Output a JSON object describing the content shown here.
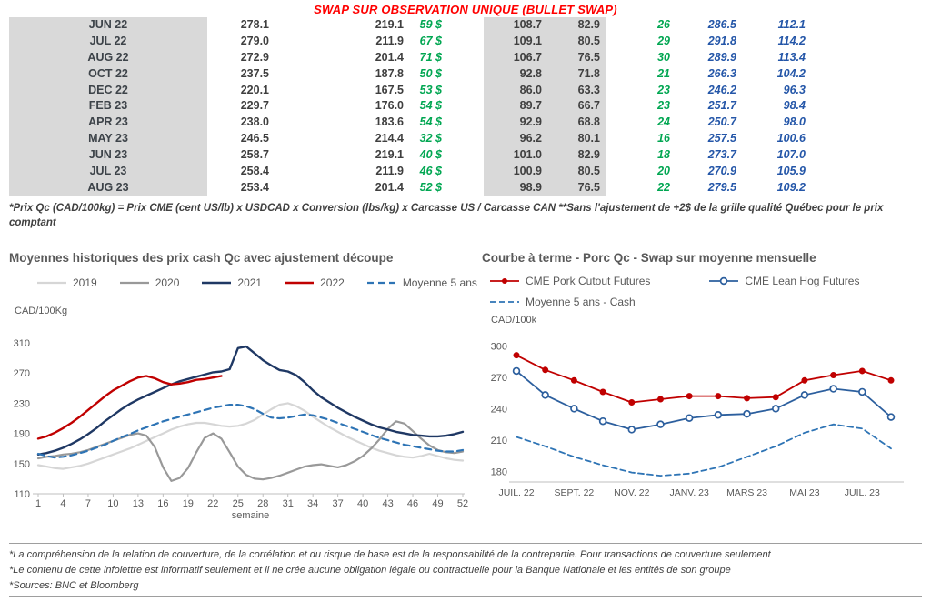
{
  "page": {
    "title": "SWAP SUR OBSERVATION UNIQUE (BULLET SWAP)"
  },
  "colors": {
    "title_red": "#FF0000",
    "positive_green": "#00A651",
    "forward_blue": "#2456A8",
    "table_shading": "#D9D9D9",
    "chart_title_gray": "#595959"
  },
  "swap_table": {
    "rows": [
      {
        "month": "JUN 22",
        "values": [
          "278.1",
          "219.1",
          "59 $",
          "108.7",
          "82.9",
          "26",
          "286.5",
          "112.1"
        ]
      },
      {
        "month": "JUL 22",
        "values": [
          "279.0",
          "211.9",
          "67 $",
          "109.1",
          "80.5",
          "29",
          "291.8",
          "114.2"
        ]
      },
      {
        "month": "AUG 22",
        "values": [
          "272.9",
          "201.4",
          "71 $",
          "106.7",
          "76.5",
          "30",
          "289.9",
          "113.4"
        ]
      },
      {
        "month": "OCT 22",
        "values": [
          "237.5",
          "187.8",
          "50 $",
          "92.8",
          "71.8",
          "21",
          "266.3",
          "104.2"
        ]
      },
      {
        "month": "DEC 22",
        "values": [
          "220.1",
          "167.5",
          "53 $",
          "86.0",
          "63.3",
          "23",
          "246.2",
          "96.3"
        ]
      },
      {
        "month": "FEB 23",
        "values": [
          "229.7",
          "176.0",
          "54 $",
          "89.7",
          "66.7",
          "23",
          "251.7",
          "98.4"
        ]
      },
      {
        "month": "APR 23",
        "values": [
          "238.0",
          "183.6",
          "54 $",
          "92.9",
          "68.8",
          "24",
          "250.7",
          "98.0"
        ]
      },
      {
        "month": "MAY 23",
        "values": [
          "246.5",
          "214.4",
          "32 $",
          "96.2",
          "80.1",
          "16",
          "257.5",
          "100.6"
        ]
      },
      {
        "month": "JUN 23",
        "values": [
          "258.7",
          "219.1",
          "40 $",
          "101.0",
          "82.9",
          "18",
          "273.7",
          "107.0"
        ]
      },
      {
        "month": "JUL 23",
        "values": [
          "258.4",
          "211.9",
          "46 $",
          "100.9",
          "80.5",
          "20",
          "270.9",
          "105.9"
        ]
      },
      {
        "month": "AUG 23",
        "values": [
          "253.4",
          "201.4",
          "52 $",
          "98.9",
          "76.5",
          "22",
          "279.5",
          "109.2"
        ]
      }
    ]
  },
  "table_footnote": "*Prix Qc (CAD/100kg) = Prix CME (cent US/lb) x USDCAD x Conversion (lbs/kg) x Carcasse US / Carcasse CAN **Sans l'ajustement de +2$ de la grille qualité Québec pour le prix comptant",
  "chart_data": [
    {
      "type": "line",
      "title": "Moyennes historiques des prix cash Qc avec ajustement découpe",
      "ylabel": "CAD/100Kg",
      "xlabel": "semaine",
      "ylim": [
        110,
        310
      ],
      "yticks": [
        110,
        150,
        190,
        230,
        270,
        310
      ],
      "x_range": [
        1,
        52
      ],
      "xticks": [
        1,
        4,
        7,
        10,
        13,
        16,
        19,
        22,
        25,
        28,
        31,
        34,
        37,
        40,
        43,
        46,
        49,
        52
      ],
      "grid": false,
      "legend_position": "top",
      "series": [
        {
          "name": "2019",
          "color": "#D6D6D6",
          "width": 2.2,
          "dash": null,
          "values": [
            148,
            146,
            144,
            143,
            145,
            147,
            150,
            154,
            158,
            162,
            166,
            170,
            175,
            180,
            185,
            190,
            195,
            199,
            202,
            204,
            204,
            202,
            200,
            199,
            200,
            203,
            208,
            215,
            222,
            228,
            230,
            226,
            220,
            212,
            205,
            198,
            192,
            186,
            181,
            176,
            171,
            167,
            164,
            161,
            159,
            158,
            160,
            163,
            160,
            157,
            155,
            154
          ]
        },
        {
          "name": "2020",
          "color": "#999999",
          "width": 2.2,
          "dash": null,
          "values": [
            157,
            159,
            160,
            162,
            163,
            165,
            168,
            172,
            176,
            180,
            184,
            188,
            190,
            187,
            172,
            145,
            127,
            131,
            144,
            165,
            184,
            190,
            183,
            165,
            146,
            135,
            130,
            129,
            131,
            134,
            138,
            142,
            146,
            148,
            149,
            147,
            145,
            148,
            153,
            160,
            170,
            182,
            196,
            206,
            203,
            193,
            183,
            174,
            168,
            165,
            164,
            166
          ]
        },
        {
          "name": "2021",
          "color": "#1F3864",
          "width": 2.4,
          "dash": null,
          "values": [
            162,
            164,
            167,
            171,
            176,
            182,
            189,
            197,
            206,
            214,
            222,
            229,
            235,
            240,
            245,
            250,
            255,
            259,
            262,
            265,
            268,
            271,
            272,
            275,
            303,
            305,
            296,
            287,
            280,
            274,
            272,
            267,
            258,
            247,
            238,
            231,
            224,
            218,
            212,
            207,
            202,
            198,
            195,
            192,
            190,
            188,
            187,
            186,
            186,
            187,
            189,
            192
          ]
        },
        {
          "name": "2022",
          "color": "#C00000",
          "width": 2.4,
          "dash": null,
          "values": [
            183,
            186,
            191,
            197,
            204,
            212,
            221,
            230,
            239,
            247,
            253,
            259,
            264,
            266,
            263,
            258,
            255,
            256,
            258,
            261,
            262,
            264,
            266
          ]
        },
        {
          "name": "Moyenne 5 ans",
          "color": "#2E74B5",
          "width": 2.2,
          "dash": "7 5",
          "values": [
            163,
            160,
            158,
            159,
            161,
            164,
            167,
            171,
            175,
            180,
            185,
            189,
            194,
            198,
            202,
            206,
            209,
            212,
            215,
            218,
            221,
            224,
            226,
            228,
            228,
            226,
            222,
            216,
            211,
            210,
            211,
            213,
            215,
            214,
            211,
            208,
            204,
            200,
            196,
            192,
            188,
            184,
            181,
            178,
            175,
            173,
            171,
            169,
            167,
            166,
            166,
            168
          ]
        }
      ]
    },
    {
      "type": "line",
      "title": "Courbe à terme - Porc Qc - Swap sur moyenne mensuelle",
      "ylabel": "CAD/100k",
      "ylim": [
        170,
        302
      ],
      "yticks": [
        180,
        210,
        240,
        270,
        300
      ],
      "xtick_labels": [
        "JUIL. 22",
        "SEPT. 22",
        "NOV. 22",
        "JANV. 23",
        "MARS 23",
        "MAI 23",
        "JUIL. 23"
      ],
      "xtick_indices": [
        0,
        2,
        4,
        6,
        8,
        10,
        12
      ],
      "grid": false,
      "legend_position": "top",
      "series": [
        {
          "name": "CME Pork Cutout Futures",
          "color": "#C00000",
          "width": 1.8,
          "dash": null,
          "marker": "filled",
          "values": [
            291,
            277,
            267,
            256,
            246,
            249,
            252,
            252,
            250,
            251,
            267,
            272,
            276,
            267
          ]
        },
        {
          "name": "CME Lean Hog Futures",
          "color": "#2C5F9E",
          "width": 1.8,
          "dash": null,
          "marker": "open",
          "values": [
            276,
            253,
            240,
            228,
            220,
            225,
            231,
            234,
            235,
            240,
            253,
            259,
            256,
            232
          ]
        },
        {
          "name": "Moyenne 5 ans - Cash",
          "color": "#2E74B5",
          "width": 1.8,
          "dash": "6 4",
          "marker": "none",
          "values": [
            213,
            204,
            194,
            186,
            179,
            176,
            178,
            184,
            194,
            204,
            217,
            225,
            221,
            202
          ]
        }
      ]
    }
  ],
  "footer": {
    "lines": [
      "*La compréhension de la relation de couverture, de la corrélation et du risque de base est de la responsabilité de la contrepartie. Pour transactions de couverture seulement",
      "*Le contenu de cette infolettre est informatif seulement et il ne crée aucune obligation légale ou contractuelle pour la Banque Nationale et les entités de son groupe",
      "*Sources: BNC et Bloomberg"
    ]
  }
}
